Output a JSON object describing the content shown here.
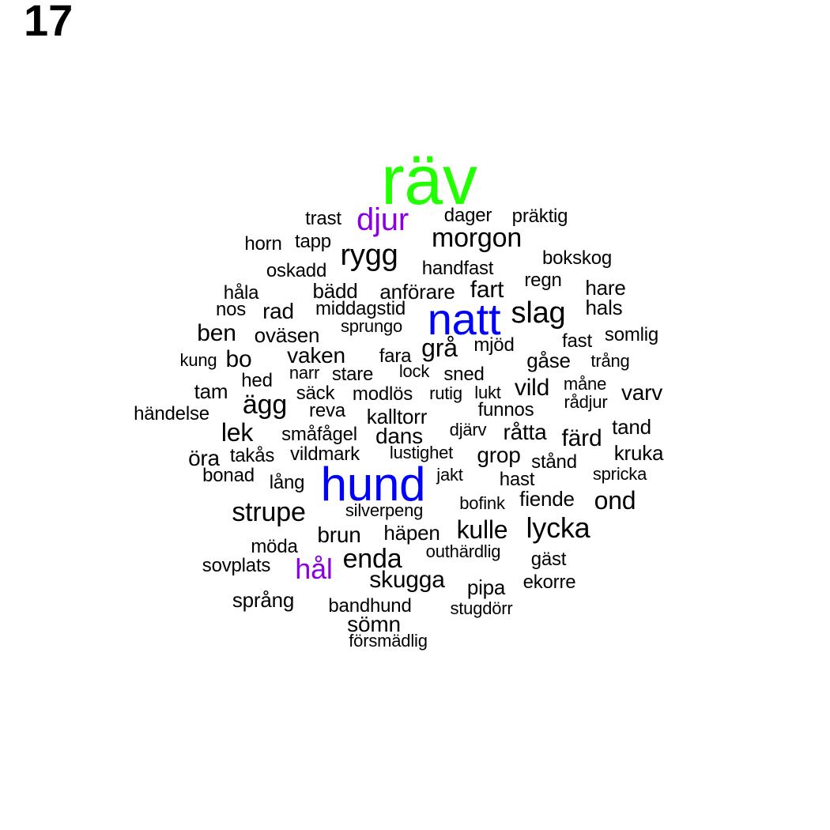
{
  "page_number": "17",
  "colors": {
    "text": "#000000",
    "green": "#22ff00",
    "blue": "#0000ff",
    "purple": "#8a00e6"
  },
  "words": [
    {
      "text": "räv",
      "color": "#22ff00"
    },
    {
      "text": "djur",
      "color": "#8a00e6"
    },
    {
      "text": "trast",
      "color": "#000000"
    },
    {
      "text": "dager",
      "color": "#000000"
    },
    {
      "text": "präktig",
      "color": "#000000"
    },
    {
      "text": "morgon",
      "color": "#000000"
    },
    {
      "text": "horn",
      "color": "#000000"
    },
    {
      "text": "tapp",
      "color": "#000000"
    },
    {
      "text": "rygg",
      "color": "#000000"
    },
    {
      "text": "bokskog",
      "color": "#000000"
    },
    {
      "text": "oskadd",
      "color": "#000000"
    },
    {
      "text": "handfast",
      "color": "#000000"
    },
    {
      "text": "regn",
      "color": "#000000"
    },
    {
      "text": "håla",
      "color": "#000000"
    },
    {
      "text": "bädd",
      "color": "#000000"
    },
    {
      "text": "anförare",
      "color": "#000000"
    },
    {
      "text": "fart",
      "color": "#000000"
    },
    {
      "text": "hare",
      "color": "#000000"
    },
    {
      "text": "nos",
      "color": "#000000"
    },
    {
      "text": "rad",
      "color": "#000000"
    },
    {
      "text": "middagstid",
      "color": "#000000"
    },
    {
      "text": "natt",
      "color": "#0000ff"
    },
    {
      "text": "slag",
      "color": "#000000"
    },
    {
      "text": "hals",
      "color": "#000000"
    },
    {
      "text": "ben",
      "color": "#000000"
    },
    {
      "text": "oväsen",
      "color": "#000000"
    },
    {
      "text": "sprungo",
      "color": "#000000"
    },
    {
      "text": "somlig",
      "color": "#000000"
    },
    {
      "text": "fast",
      "color": "#000000"
    },
    {
      "text": "grå",
      "color": "#000000"
    },
    {
      "text": "mjöd",
      "color": "#000000"
    },
    {
      "text": "kung",
      "color": "#000000"
    },
    {
      "text": "bo",
      "color": "#000000"
    },
    {
      "text": "vaken",
      "color": "#000000"
    },
    {
      "text": "fara",
      "color": "#000000"
    },
    {
      "text": "gåse",
      "color": "#000000"
    },
    {
      "text": "trång",
      "color": "#000000"
    },
    {
      "text": "hed",
      "color": "#000000"
    },
    {
      "text": "narr",
      "color": "#000000"
    },
    {
      "text": "stare",
      "color": "#000000"
    },
    {
      "text": "lock",
      "color": "#000000"
    },
    {
      "text": "sned",
      "color": "#000000"
    },
    {
      "text": "tam",
      "color": "#000000"
    },
    {
      "text": "säck",
      "color": "#000000"
    },
    {
      "text": "modlös",
      "color": "#000000"
    },
    {
      "text": "rutig",
      "color": "#000000"
    },
    {
      "text": "lukt",
      "color": "#000000"
    },
    {
      "text": "vild",
      "color": "#000000"
    },
    {
      "text": "måne",
      "color": "#000000"
    },
    {
      "text": "varv",
      "color": "#000000"
    },
    {
      "text": "ägg",
      "color": "#000000"
    },
    {
      "text": "rådjur",
      "color": "#000000"
    },
    {
      "text": "händelse",
      "color": "#000000"
    },
    {
      "text": "reva",
      "color": "#000000"
    },
    {
      "text": "kalltorr",
      "color": "#000000"
    },
    {
      "text": "funnos",
      "color": "#000000"
    },
    {
      "text": "tand",
      "color": "#000000"
    },
    {
      "text": "lek",
      "color": "#000000"
    },
    {
      "text": "småfågel",
      "color": "#000000"
    },
    {
      "text": "dans",
      "color": "#000000"
    },
    {
      "text": "djärv",
      "color": "#000000"
    },
    {
      "text": "råtta",
      "color": "#000000"
    },
    {
      "text": "färd",
      "color": "#000000"
    },
    {
      "text": "öra",
      "color": "#000000"
    },
    {
      "text": "takås",
      "color": "#000000"
    },
    {
      "text": "vildmark",
      "color": "#000000"
    },
    {
      "text": "lustighet",
      "color": "#000000"
    },
    {
      "text": "grop",
      "color": "#000000"
    },
    {
      "text": "stånd",
      "color": "#000000"
    },
    {
      "text": "kruka",
      "color": "#000000"
    },
    {
      "text": "bonad",
      "color": "#000000"
    },
    {
      "text": "lång",
      "color": "#000000"
    },
    {
      "text": "hund",
      "color": "#0000ff"
    },
    {
      "text": "jakt",
      "color": "#000000"
    },
    {
      "text": "hast",
      "color": "#000000"
    },
    {
      "text": "spricka",
      "color": "#000000"
    },
    {
      "text": "fiende",
      "color": "#000000"
    },
    {
      "text": "ond",
      "color": "#000000"
    },
    {
      "text": "strupe",
      "color": "#000000"
    },
    {
      "text": "silverpeng",
      "color": "#000000"
    },
    {
      "text": "bofink",
      "color": "#000000"
    },
    {
      "text": "kulle",
      "color": "#000000"
    },
    {
      "text": "lycka",
      "color": "#000000"
    },
    {
      "text": "brun",
      "color": "#000000"
    },
    {
      "text": "häpen",
      "color": "#000000"
    },
    {
      "text": "möda",
      "color": "#000000"
    },
    {
      "text": "outhärdlig",
      "color": "#000000"
    },
    {
      "text": "gäst",
      "color": "#000000"
    },
    {
      "text": "sovplats",
      "color": "#000000"
    },
    {
      "text": "hål",
      "color": "#8a00e6"
    },
    {
      "text": "enda",
      "color": "#000000"
    },
    {
      "text": "skugga",
      "color": "#000000"
    },
    {
      "text": "pipa",
      "color": "#000000"
    },
    {
      "text": "ekorre",
      "color": "#000000"
    },
    {
      "text": "språng",
      "color": "#000000"
    },
    {
      "text": "bandhund",
      "color": "#000000"
    },
    {
      "text": "stugdörr",
      "color": "#000000"
    },
    {
      "text": "sömn",
      "color": "#000000"
    },
    {
      "text": "försmädlig",
      "color": "#000000"
    }
  ]
}
